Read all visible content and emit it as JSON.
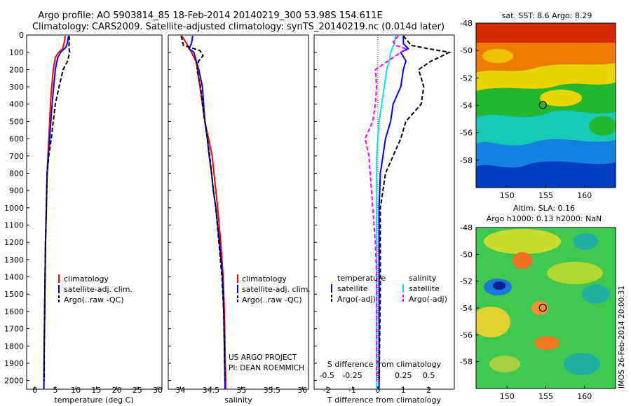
{
  "page": {
    "title_line1": "Argo profile: AO 5903814_85 18-Feb-2014 20140219_300 53.98S 154.611E",
    "title_line2": "Climatology: CARS2009. Satellite-adjusted climatology: synTS_20140219.nc (0.014d later)",
    "timestamp": "IMOS 26-Feb-2014 20:00:31",
    "project_line1": "US ARGO PROJECT",
    "project_line2": "PI: DEAN ROEMMICH"
  },
  "colors": {
    "climatology": "#ff0000",
    "satellite": "#0000ff",
    "argo": "#000000",
    "sal_satellite": "#00e5ee",
    "sal_argo": "#ff00ff"
  },
  "chart_data": [
    {
      "id": "temperature",
      "type": "line",
      "xlabel": "temperature (deg C)",
      "ylabel": "",
      "xlim": [
        -2,
        31
      ],
      "ylim": [
        2050,
        0
      ],
      "xticks": [
        "0",
        "5",
        "10",
        "15",
        "20",
        "25",
        "30"
      ],
      "yticks": [
        "0",
        "100",
        "200",
        "300",
        "400",
        "500",
        "600",
        "700",
        "800",
        "900",
        "1000",
        "1100",
        "1200",
        "1300",
        "1400",
        "1500",
        "1600",
        "1700",
        "1800",
        "1900",
        "2000"
      ],
      "legend": [
        "climatology",
        "satellite-adj. clim.",
        "Argo(..raw -QC)"
      ],
      "series": [
        {
          "name": "climatology",
          "y": [
            5,
            40,
            80,
            100,
            130,
            200,
            300,
            400,
            500,
            600,
            700,
            800,
            1000,
            1200,
            1400,
            1600,
            1800,
            2000,
            2050
          ],
          "values": [
            7.4,
            7.2,
            6.8,
            5.8,
            5.0,
            4.5,
            4.1,
            3.8,
            3.6,
            3.4,
            3.2,
            3.0,
            2.8,
            2.6,
            2.5,
            2.4,
            2.3,
            2.2,
            2.2
          ]
        },
        {
          "name": "satellite-adj. clim.",
          "y": [
            5,
            40,
            70,
            100,
            130,
            200,
            300,
            400,
            500,
            600,
            700,
            800,
            1000,
            1200,
            1400,
            1600,
            1800,
            2000,
            2050
          ],
          "values": [
            8.2,
            8.0,
            7.6,
            6.3,
            5.6,
            5.0,
            4.6,
            4.2,
            3.9,
            3.6,
            3.3,
            3.0,
            2.8,
            2.6,
            2.5,
            2.4,
            2.3,
            2.2,
            2.2
          ]
        },
        {
          "name": "Argo(..raw -QC)",
          "y": [
            5,
            40,
            70,
            100,
            150,
            200,
            300,
            400,
            500,
            600,
            700,
            800,
            1000,
            1200,
            1400,
            1600,
            1800,
            2000
          ],
          "values": [
            8.4,
            8.4,
            8.3,
            8.5,
            8.0,
            6.9,
            5.9,
            5.0,
            4.5,
            4.0,
            3.4,
            3.0,
            2.8,
            2.6,
            2.5,
            2.4,
            2.3,
            2.3
          ]
        }
      ]
    },
    {
      "id": "salinity",
      "type": "line",
      "xlabel": "salinity",
      "ylabel": "",
      "xlim": [
        33.8,
        36.1
      ],
      "ylim": [
        2050,
        0
      ],
      "xticks": [
        "34",
        "34.5",
        "35",
        "35.5",
        "36"
      ],
      "legend": [
        "climatology",
        "satellite-adj. clim.",
        "Argo(..raw -QC)"
      ],
      "series": [
        {
          "name": "climatology",
          "y": [
            5,
            50,
            100,
            150,
            200,
            300,
            400,
            500,
            600,
            700,
            800,
            900,
            1000,
            1200,
            1400,
            1600,
            1800,
            2000,
            2050
          ],
          "values": [
            34.02,
            34.1,
            34.18,
            34.25,
            34.28,
            34.32,
            34.36,
            34.4,
            34.46,
            34.52,
            34.55,
            34.58,
            34.61,
            34.66,
            34.7,
            34.72,
            34.73,
            34.74,
            34.74
          ]
        },
        {
          "name": "satellite-adj. clim.",
          "y": [
            5,
            50,
            80,
            100,
            150,
            200,
            300,
            400,
            500,
            600,
            700,
            800,
            900,
            1000,
            1200,
            1400,
            1600,
            1800,
            2000,
            2050
          ],
          "values": [
            34.2,
            34.18,
            34.14,
            34.22,
            34.26,
            34.3,
            34.36,
            34.38,
            34.4,
            34.44,
            34.47,
            34.51,
            34.54,
            34.58,
            34.64,
            34.69,
            34.71,
            34.72,
            34.73,
            34.73
          ]
        },
        {
          "name": "Argo(..raw -QC)",
          "y": [
            5,
            60,
            90,
            120,
            150,
            200,
            250,
            300,
            400,
            500,
            600,
            700,
            800,
            900,
            1000,
            1200,
            1400,
            1600,
            1800,
            2000
          ],
          "values": [
            34.01,
            34.05,
            34.32,
            34.37,
            34.3,
            34.27,
            34.3,
            34.33,
            34.36,
            34.4,
            34.44,
            34.48,
            34.51,
            34.54,
            34.58,
            34.63,
            34.68,
            34.71,
            34.72,
            34.73
          ]
        }
      ]
    },
    {
      "id": "difference",
      "type": "line",
      "xlabel": "T difference from climatology",
      "xlabel2": "S difference from climatology",
      "xlim": [
        -2.5,
        3
      ],
      "ylim": [
        2050,
        0
      ],
      "xticks": [
        "-2",
        "-1",
        "0",
        "1",
        "2"
      ],
      "xticks2": [
        "-0.5",
        "-0.25",
        "0",
        "0.25",
        "0.5"
      ],
      "legend_headers": [
        "temperature",
        "salinity"
      ],
      "legend": [
        "satellite",
        "Argo(-adj)",
        "satellite",
        "Argo(-adj)"
      ],
      "series": [
        {
          "name": "temperature satellite",
          "y": [
            5,
            50,
            80,
            100,
            150,
            200,
            300,
            400,
            500,
            600,
            700,
            800,
            1000,
            1200,
            1400,
            1600,
            1800,
            2000,
            2050
          ],
          "values": [
            1.0,
            1.0,
            1.2,
            0.9,
            1.1,
            1.0,
            0.9,
            0.6,
            0.5,
            0.3,
            0.2,
            0.1,
            0.05,
            0.05,
            0.05,
            0.05,
            0.05,
            0.05,
            0.05
          ]
        },
        {
          "name": "temperature Argo(-adj)",
          "y": [
            5,
            40,
            60,
            80,
            100,
            130,
            150,
            200,
            300,
            400,
            500,
            600,
            700,
            800,
            900,
            1000,
            1200,
            1500,
            2000
          ],
          "values": [
            1.0,
            1.2,
            1.3,
            2.0,
            2.8,
            2.4,
            2.1,
            1.6,
            1.8,
            1.7,
            1.1,
            0.9,
            0.6,
            0.3,
            0.2,
            0.1,
            0.1,
            0.1,
            0.05
          ]
        },
        {
          "name": "salinity satellite",
          "y": [
            5,
            50,
            100,
            150,
            200,
            300,
            400,
            500,
            600,
            700,
            800,
            1000,
            1200,
            1400,
            1600,
            1800,
            2000,
            2050
          ],
          "values": [
            0.7,
            0.65,
            0.5,
            0.45,
            0.35,
            0.25,
            0.15,
            0.05,
            0.0,
            -0.05,
            -0.05,
            -0.05,
            -0.05,
            -0.05,
            -0.05,
            -0.05,
            -0.05,
            -0.05
          ]
        },
        {
          "name": "salinity Argo(-adj)",
          "y": [
            5,
            40,
            60,
            80,
            100,
            150,
            200,
            300,
            400,
            500,
            600,
            700,
            800,
            1000,
            1200,
            1400,
            1600,
            2000
          ],
          "values": [
            0.8,
            0.6,
            0.7,
            1.1,
            0.9,
            0.4,
            -0.1,
            -0.05,
            -0.1,
            -0.2,
            -0.5,
            -0.35,
            -0.3,
            -0.2,
            -0.1,
            -0.05,
            -0.05,
            -0.05
          ]
        }
      ]
    },
    {
      "id": "sst-map",
      "type": "heatmap",
      "title": "sat. SST: 8.6  Argo: 8.29",
      "xlim": [
        146,
        164
      ],
      "ylim": [
        -60,
        -48
      ],
      "xticks": [
        "150",
        "155",
        "160"
      ],
      "yticks": [
        "-48",
        "-50",
        "-52",
        "-54",
        "-56",
        "-58"
      ],
      "marker": {
        "lon": 154.611,
        "lat": -53.98
      }
    },
    {
      "id": "sla-map",
      "type": "heatmap",
      "title_line1": "Altim. SLA: 0.16",
      "title_line2": "Argo h1000: 0.13 h2000: NaN",
      "xlim": [
        146,
        164
      ],
      "ylim": [
        -60,
        -48
      ],
      "xticks": [
        "150",
        "155",
        "160"
      ],
      "yticks": [
        "-48",
        "-50",
        "-52",
        "-54",
        "-56",
        "-58"
      ],
      "marker": {
        "lon": 154.611,
        "lat": -53.98
      }
    }
  ]
}
